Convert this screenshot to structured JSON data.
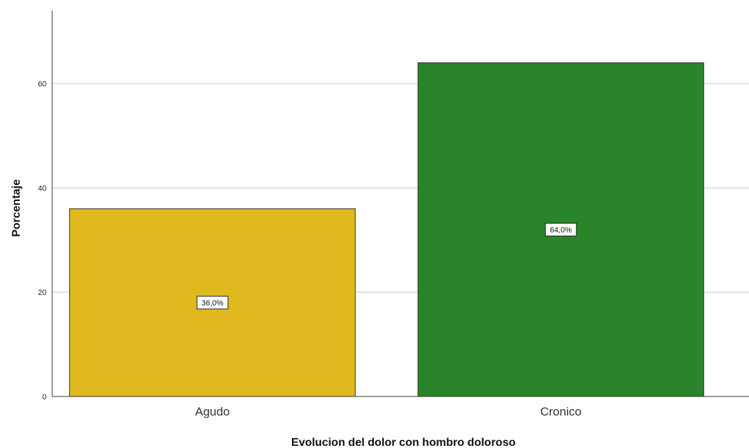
{
  "chart_data": {
    "type": "bar",
    "categories": [
      "Agudo",
      "Cronico"
    ],
    "values": [
      36.0,
      64.0
    ],
    "data_labels": [
      "36,0%",
      "64,0%"
    ],
    "colors": [
      "#e0b91e",
      "#2a842a"
    ],
    "xlabel": "Evolucion del dolor con hombro doloroso",
    "ylabel": "Porcentaje",
    "ylim": [
      0,
      74
    ],
    "yticks": [
      0,
      20,
      40,
      60
    ],
    "grid": true,
    "legend": "none"
  }
}
